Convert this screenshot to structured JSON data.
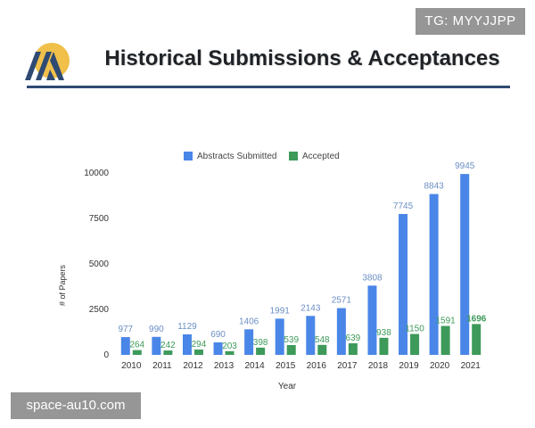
{
  "header": {
    "title": "Historical Submissions & Acceptances"
  },
  "watermarks": {
    "top_right": "TG: MYYJJPP",
    "bottom_left": "space-au10.com"
  },
  "colors": {
    "submitted": "#4a86e8",
    "accepted": "#3d9a5a",
    "submitted_label": "#6b8fc4",
    "accepted_label": "#3d9a5a",
    "header_rule": "#2f4a73"
  },
  "chart_data": {
    "type": "bar",
    "title": "",
    "xlabel": "Year",
    "ylabel": "# of Papers",
    "categories": [
      "2010",
      "2011",
      "2012",
      "2013",
      "2014",
      "2015",
      "2016",
      "2017",
      "2018",
      "2019",
      "2020",
      "2021"
    ],
    "series": [
      {
        "name": "Abstracts Submitted",
        "values": [
          977,
          990,
          1129,
          690,
          1406,
          1991,
          2143,
          2571,
          3808,
          7745,
          8843,
          9945
        ]
      },
      {
        "name": "Accepted",
        "values": [
          264,
          242,
          294,
          203,
          398,
          539,
          548,
          639,
          938,
          1150,
          1591,
          1696
        ]
      }
    ],
    "yticks": [
      0,
      2500,
      5000,
      7500,
      10000
    ],
    "ylim": [
      0,
      10000
    ],
    "legend": "top-center",
    "grid": false
  }
}
